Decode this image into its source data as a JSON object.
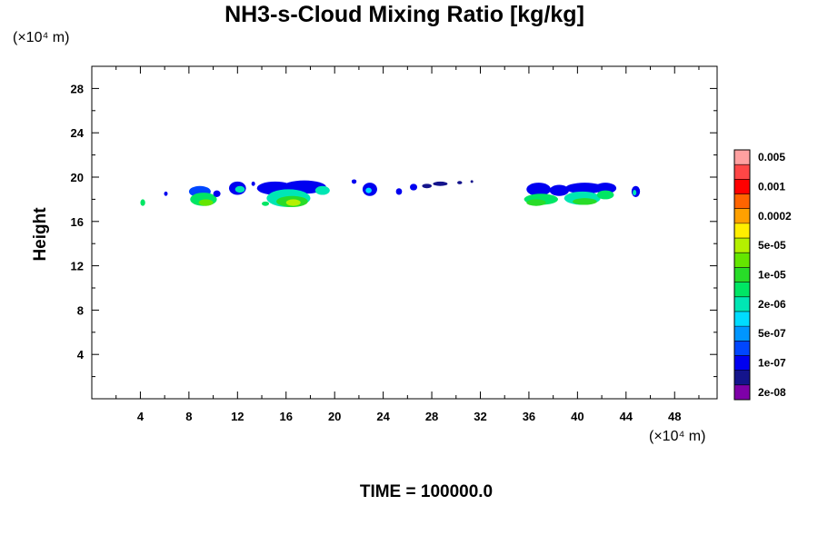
{
  "chart_data": {
    "type": "heatmap",
    "title": "NH3-s-Cloud Mixing Ratio [kg/kg]",
    "xlabel": "",
    "ylabel": "Height",
    "x_unit": "(×10⁴ m)",
    "y_unit": "(×10⁴ m)",
    "xlim": [
      0,
      51.5
    ],
    "ylim": [
      0,
      30
    ],
    "x_ticks": [
      "4",
      "8",
      "12",
      "16",
      "20",
      "24",
      "28",
      "32",
      "36",
      "40",
      "44",
      "48"
    ],
    "y_ticks": [
      "4",
      "8",
      "12",
      "16",
      "20",
      "24",
      "28"
    ],
    "grid": false,
    "annotation": "TIME = 100000.0",
    "colorbar": {
      "colors": [
        "#7e00a8",
        "#14148c",
        "#0000f0",
        "#0046ff",
        "#0096ff",
        "#00dcff",
        "#00e6b4",
        "#00e664",
        "#28dc28",
        "#64e600",
        "#b4f000",
        "#ffee00",
        "#ffa000",
        "#ff6400",
        "#ff0000",
        "#ff4646",
        "#ffa0a0"
      ],
      "labels": [
        "2e-08",
        "1e-07",
        "5e-07",
        "2e-06",
        "1e-05",
        "5e-05",
        "0.0002",
        "0.001",
        "0.005"
      ]
    },
    "cloud_regions": [
      {
        "name": "cloud-1",
        "x": 4.2,
        "y": 17.7,
        "rx": 0.2,
        "ry": 0.3,
        "level": 7
      },
      {
        "name": "cloud-2",
        "x": 6.1,
        "y": 18.5,
        "rx": 0.15,
        "ry": 0.2,
        "level": 2
      },
      {
        "name": "cloud-3",
        "x": 8.9,
        "y": 18.7,
        "rx": 0.9,
        "ry": 0.5,
        "level": 3
      },
      {
        "name": "cloud-4",
        "x": 9.2,
        "y": 18.0,
        "rx": 1.1,
        "ry": 0.6,
        "level": 7
      },
      {
        "name": "cloud-5",
        "x": 9.4,
        "y": 17.7,
        "rx": 0.6,
        "ry": 0.3,
        "level": 9
      },
      {
        "name": "cloud-6",
        "x": 10.3,
        "y": 18.5,
        "rx": 0.3,
        "ry": 0.3,
        "level": 2
      },
      {
        "name": "cloud-7",
        "x": 12.0,
        "y": 19.0,
        "rx": 0.7,
        "ry": 0.6,
        "level": 2
      },
      {
        "name": "cloud-8",
        "x": 12.2,
        "y": 18.9,
        "rx": 0.4,
        "ry": 0.3,
        "level": 6
      },
      {
        "name": "cloud-9",
        "x": 13.3,
        "y": 19.4,
        "rx": 0.15,
        "ry": 0.2,
        "level": 2
      },
      {
        "name": "cloud-10",
        "x": 14.3,
        "y": 17.6,
        "rx": 0.3,
        "ry": 0.2,
        "level": 7
      },
      {
        "name": "cloud-11",
        "x": 15.1,
        "y": 19.0,
        "rx": 1.5,
        "ry": 0.6,
        "level": 2
      },
      {
        "name": "cloud-12",
        "x": 17.5,
        "y": 19.1,
        "rx": 1.8,
        "ry": 0.6,
        "level": 2
      },
      {
        "name": "cloud-13",
        "x": 16.2,
        "y": 18.1,
        "rx": 1.8,
        "ry": 0.8,
        "level": 6
      },
      {
        "name": "cloud-14",
        "x": 16.5,
        "y": 17.8,
        "rx": 1.3,
        "ry": 0.5,
        "level": 8
      },
      {
        "name": "cloud-15",
        "x": 16.6,
        "y": 17.7,
        "rx": 0.6,
        "ry": 0.3,
        "level": 10
      },
      {
        "name": "cloud-16",
        "x": 19.0,
        "y": 18.8,
        "rx": 0.6,
        "ry": 0.4,
        "level": 6
      },
      {
        "name": "cloud-17",
        "x": 21.6,
        "y": 19.6,
        "rx": 0.2,
        "ry": 0.2,
        "level": 2
      },
      {
        "name": "cloud-18",
        "x": 22.9,
        "y": 18.9,
        "rx": 0.6,
        "ry": 0.6,
        "level": 2
      },
      {
        "name": "cloud-19",
        "x": 22.8,
        "y": 18.8,
        "rx": 0.25,
        "ry": 0.25,
        "level": 5
      },
      {
        "name": "cloud-20",
        "x": 25.3,
        "y": 18.7,
        "rx": 0.25,
        "ry": 0.3,
        "level": 2
      },
      {
        "name": "cloud-21",
        "x": 26.5,
        "y": 19.1,
        "rx": 0.3,
        "ry": 0.3,
        "level": 2
      },
      {
        "name": "cloud-22",
        "x": 27.6,
        "y": 19.2,
        "rx": 0.4,
        "ry": 0.2,
        "level": 1
      },
      {
        "name": "cloud-23",
        "x": 28.7,
        "y": 19.4,
        "rx": 0.6,
        "ry": 0.2,
        "level": 1
      },
      {
        "name": "cloud-24",
        "x": 30.3,
        "y": 19.5,
        "rx": 0.2,
        "ry": 0.15,
        "level": 1
      },
      {
        "name": "cloud-25",
        "x": 31.3,
        "y": 19.6,
        "rx": 0.1,
        "ry": 0.1,
        "level": 1
      },
      {
        "name": "cloud-26",
        "x": 36.8,
        "y": 18.9,
        "rx": 1.0,
        "ry": 0.6,
        "level": 2
      },
      {
        "name": "cloud-27",
        "x": 37.0,
        "y": 18.0,
        "rx": 1.4,
        "ry": 0.5,
        "level": 7
      },
      {
        "name": "cloud-28",
        "x": 36.6,
        "y": 17.7,
        "rx": 0.8,
        "ry": 0.3,
        "level": 8
      },
      {
        "name": "cloud-29",
        "x": 38.5,
        "y": 18.8,
        "rx": 0.8,
        "ry": 0.5,
        "level": 2
      },
      {
        "name": "cloud-30",
        "x": 40.6,
        "y": 19.0,
        "rx": 1.6,
        "ry": 0.5,
        "level": 2
      },
      {
        "name": "cloud-31",
        "x": 42.3,
        "y": 19.0,
        "rx": 0.9,
        "ry": 0.5,
        "level": 2
      },
      {
        "name": "cloud-32",
        "x": 40.4,
        "y": 18.1,
        "rx": 1.5,
        "ry": 0.6,
        "level": 6
      },
      {
        "name": "cloud-33",
        "x": 40.6,
        "y": 17.8,
        "rx": 1.0,
        "ry": 0.3,
        "level": 8
      },
      {
        "name": "cloud-34",
        "x": 42.3,
        "y": 18.4,
        "rx": 0.7,
        "ry": 0.4,
        "level": 7
      },
      {
        "name": "cloud-35",
        "x": 44.8,
        "y": 18.7,
        "rx": 0.35,
        "ry": 0.5,
        "level": 2
      },
      {
        "name": "cloud-36",
        "x": 44.7,
        "y": 18.6,
        "rx": 0.15,
        "ry": 0.25,
        "level": 6
      }
    ]
  }
}
